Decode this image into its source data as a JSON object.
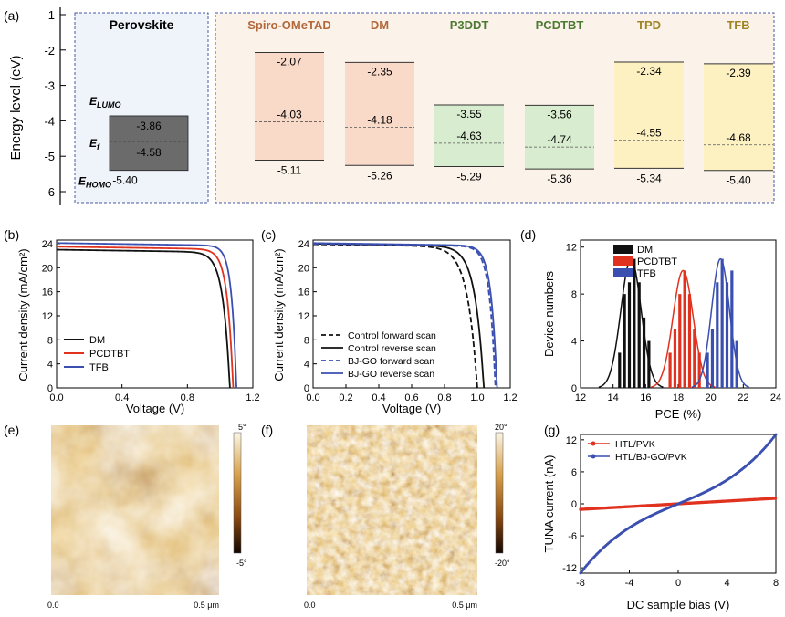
{
  "panel_letters": [
    "(a)",
    "(b)",
    "(c)",
    "(d)",
    "(e)",
    "(f)",
    "(g)"
  ],
  "chart_data": [
    {
      "id": "a",
      "type": "bar",
      "ylabel": "Energy level (eV)",
      "ylim": [
        -6,
        -1
      ],
      "yticks": [
        -1,
        -2,
        -3,
        -4,
        -5,
        -6
      ],
      "grid": false,
      "perovskite": {
        "name": "Perovskite",
        "lumo_label": "E",
        "lumo_sub": "LUMO",
        "ef_label": "E",
        "ef_sub": "f",
        "homo_label": "E",
        "homo_sub": "HOMO",
        "lumo": -3.86,
        "ef": -4.58,
        "homo": -5.4,
        "lumo_text": "-3.86",
        "ef_text": "-4.58",
        "homo_text": "-5.40",
        "color": "#6b6b6b"
      },
      "materials": [
        {
          "name": "Spiro-OMeTAD",
          "lumo": -2.07,
          "ef": -4.03,
          "homo": -5.11,
          "lumo_text": "-2.07",
          "ef_text": "-4.03",
          "homo_text": "-5.11",
          "fill": "#f9d9c8",
          "label_color": "#b3683a"
        },
        {
          "name": "DM",
          "lumo": -2.35,
          "ef": -4.18,
          "homo": -5.26,
          "lumo_text": "-2.35",
          "ef_text": "-4.18",
          "homo_text": "-5.26",
          "fill": "#f9d9c8",
          "label_color": "#b3683a"
        },
        {
          "name": "P3DDT",
          "lumo": -3.55,
          "ef": -4.63,
          "homo": -5.29,
          "lumo_text": "-3.55",
          "ef_text": "-4.63",
          "homo_text": "-5.29",
          "fill": "#d8edcf",
          "label_color": "#4d7a32"
        },
        {
          "name": "PCDTBT",
          "lumo": -3.56,
          "ef": -4.74,
          "homo": -5.36,
          "lumo_text": "-3.56",
          "ef_text": "-4.74",
          "homo_text": "-5.36",
          "fill": "#d8edcf",
          "label_color": "#4d7a32"
        },
        {
          "name": "TPD",
          "lumo": -2.34,
          "ef": -4.55,
          "homo": -5.34,
          "lumo_text": "-2.34",
          "ef_text": "-4.55",
          "homo_text": "-5.34",
          "fill": "#fdf1c2",
          "label_color": "#a08422"
        },
        {
          "name": "TFB",
          "lumo": -2.39,
          "ef": -4.68,
          "homo": -5.4,
          "lumo_text": "-2.39",
          "ef_text": "-4.68",
          "homo_text": "-5.40",
          "fill": "#fdf1c2",
          "label_color": "#a08422"
        }
      ]
    },
    {
      "id": "b",
      "type": "line",
      "xlabel": "Voltage (V)",
      "ylabel": "Current density (mA/cm²)",
      "xlim": [
        0,
        1.2
      ],
      "ylim": [
        0,
        24.6
      ],
      "xticks": [
        0.0,
        0.4,
        0.8,
        1.2
      ],
      "xtick_labels": [
        "0.0",
        "0.4",
        "0.8",
        "1.2"
      ],
      "yticks": [
        0,
        4,
        8,
        12,
        16,
        20,
        24
      ],
      "legend": "bottom-left",
      "series": [
        {
          "name": "DM",
          "color": "#111111",
          "jsc": 23.0,
          "voc": 1.06,
          "knee": 0.92
        },
        {
          "name": "PCDTBT",
          "color": "#e0321e",
          "jsc": 23.5,
          "voc": 1.08,
          "knee": 0.96
        },
        {
          "name": "TFB",
          "color": "#3a4fb0",
          "jsc": 24.1,
          "voc": 1.1,
          "knee": 1.0
        }
      ]
    },
    {
      "id": "c",
      "type": "line",
      "xlabel": "Voltage (V)",
      "ylabel": "Current density (mA/cm²)",
      "xlim": [
        0,
        1.2
      ],
      "ylim": [
        0,
        24.6
      ],
      "xticks": [
        0.0,
        0.2,
        0.4,
        0.6,
        0.8,
        1.0,
        1.2
      ],
      "xtick_labels": [
        "0.0",
        "0.2",
        "0.4",
        "0.6",
        "0.8",
        "1.0",
        "1.2"
      ],
      "yticks": [
        0,
        4,
        8,
        12,
        16,
        20,
        24
      ],
      "legend": "bottom-left",
      "series": [
        {
          "name": "Control forward scan",
          "color": "#111111",
          "dash": true,
          "jsc": 23.9,
          "voc": 1.0,
          "knee": 0.8
        },
        {
          "name": "Control reverse scan",
          "color": "#111111",
          "dash": false,
          "jsc": 24.0,
          "voc": 1.04,
          "knee": 0.86
        },
        {
          "name": "BJ-GO forward scan",
          "color": "#3a4fb0",
          "dash": true,
          "jsc": 24.0,
          "voc": 1.11,
          "knee": 0.99
        },
        {
          "name": "BJ-GO reverse scan",
          "color": "#3a4fb0",
          "dash": false,
          "jsc": 24.1,
          "voc": 1.12,
          "knee": 1.0
        }
      ]
    },
    {
      "id": "d",
      "type": "bar",
      "xlabel": "PCE (%)",
      "ylabel": "Device numbers",
      "xlim": [
        12,
        24
      ],
      "ylim": [
        0,
        12.6
      ],
      "xticks": [
        12,
        14,
        16,
        18,
        20,
        22,
        24
      ],
      "yticks": [
        0,
        4,
        8,
        12
      ],
      "legend": "top-left",
      "series": [
        {
          "name": "DM",
          "color": "#111111",
          "mean": 15.1,
          "sd": 0.62,
          "peak": 11,
          "bars": [
            {
              "x": 14.4,
              "y": 3
            },
            {
              "x": 14.7,
              "y": 8
            },
            {
              "x": 15.0,
              "y": 9
            },
            {
              "x": 15.3,
              "y": 11
            },
            {
              "x": 15.6,
              "y": 9
            },
            {
              "x": 15.9,
              "y": 6
            },
            {
              "x": 16.2,
              "y": 4
            }
          ]
        },
        {
          "name": "PCDTBT",
          "color": "#e0321e",
          "mean": 18.3,
          "sd": 0.62,
          "peak": 10,
          "bars": [
            {
              "x": 17.5,
              "y": 3
            },
            {
              "x": 17.8,
              "y": 5
            },
            {
              "x": 18.1,
              "y": 8
            },
            {
              "x": 18.4,
              "y": 10
            },
            {
              "x": 18.7,
              "y": 8
            },
            {
              "x": 19.0,
              "y": 5
            },
            {
              "x": 19.3,
              "y": 3
            }
          ]
        },
        {
          "name": "TFB",
          "color": "#3a4fb0",
          "mean": 20.6,
          "sd": 0.55,
          "peak": 11,
          "bars": [
            {
              "x": 19.8,
              "y": 3
            },
            {
              "x": 20.1,
              "y": 5
            },
            {
              "x": 20.4,
              "y": 9
            },
            {
              "x": 20.7,
              "y": 11
            },
            {
              "x": 21.0,
              "y": 9
            },
            {
              "x": 21.3,
              "y": 10
            },
            {
              "x": 21.6,
              "y": 4
            }
          ]
        }
      ]
    },
    {
      "id": "e",
      "type": "heatmap",
      "colorbar_max": "5°",
      "colorbar_min": "-5°",
      "x_start": "0.0",
      "x_end": "0.5 μm"
    },
    {
      "id": "f",
      "type": "heatmap",
      "colorbar_max": "20°",
      "colorbar_min": "-20°",
      "x_start": "0.0",
      "x_end": "0.5 μm"
    },
    {
      "id": "g",
      "type": "line",
      "xlabel": "DC sample bias (V)",
      "ylabel": "TUNA current (nA)",
      "xlim": [
        -8,
        8
      ],
      "ylim": [
        -13,
        13
      ],
      "xticks": [
        -8,
        -4,
        0,
        4,
        8
      ],
      "yticks": [
        -12,
        -6,
        0,
        6,
        12
      ],
      "legend": "top-left",
      "series": [
        {
          "name": "HTL/PVK",
          "color": "#e0321e",
          "slope": 0.13
        },
        {
          "name": "HTL/BJ-GO/PVK",
          "color": "#3a4fb0",
          "linear": 0.95,
          "cubic": 0.0105
        }
      ]
    }
  ]
}
